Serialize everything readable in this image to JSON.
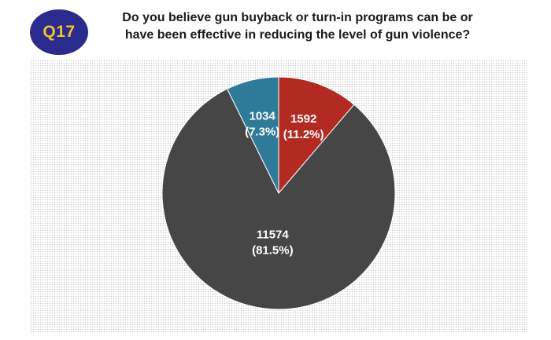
{
  "header": {
    "badge": "Q17",
    "question_line1": "Do you believe gun buyback or turn-in programs can be or",
    "question_line2": "have been effective in reducing the level of gun violence?"
  },
  "colors": {
    "badge_bg": "#2a2b8c",
    "badge_text": "#f2c230"
  },
  "chart_data": {
    "type": "pie",
    "title": "",
    "grid": false,
    "legend": "none",
    "slices": [
      {
        "value": 1592,
        "percent_label": "(11.2%)",
        "value_label": "1592",
        "color": "#b32a22"
      },
      {
        "value": 11574,
        "percent_label": "(81.5%)",
        "value_label": "11574",
        "color": "#464646"
      },
      {
        "value": 1034,
        "percent_label": "(7.3%)",
        "value_label": "1034",
        "color": "#2f7a98"
      }
    ]
  }
}
